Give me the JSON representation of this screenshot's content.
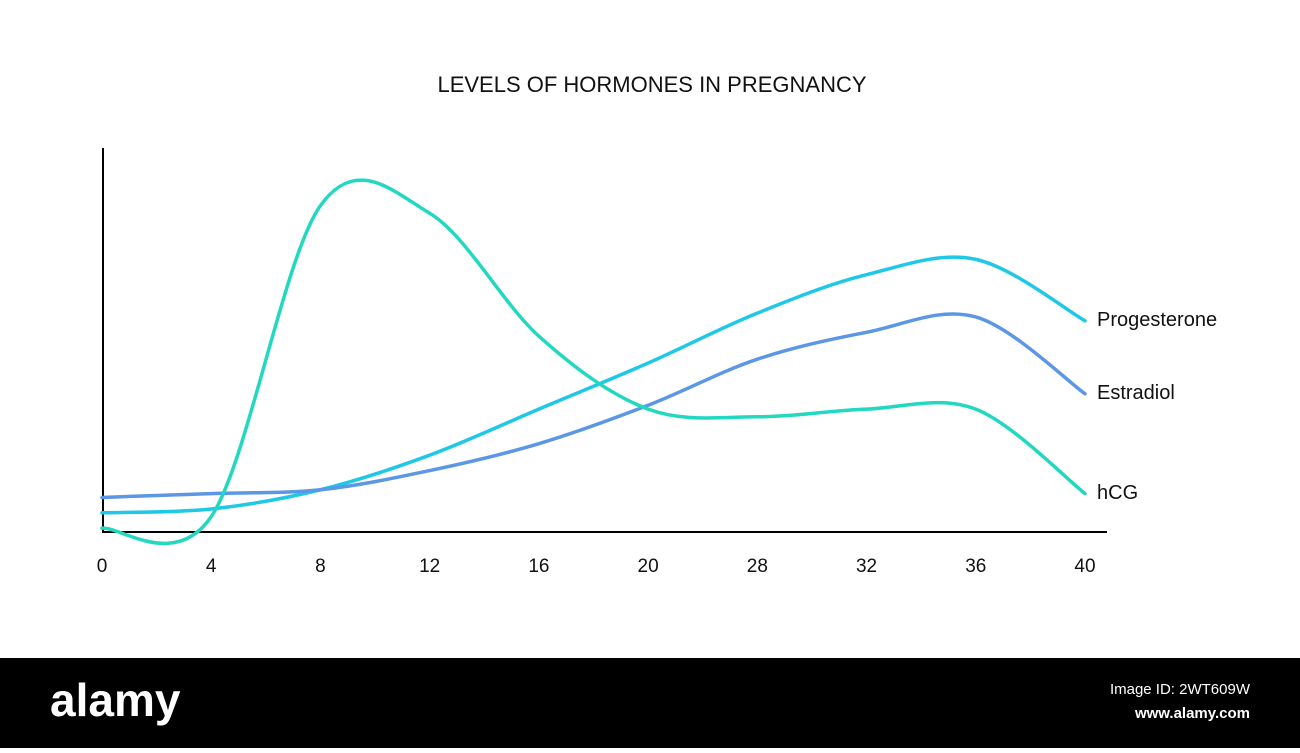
{
  "chart_data": {
    "type": "line",
    "title": "LEVELS OF HORMONES IN PREGNANCY",
    "categories": [
      "0",
      "4",
      "8",
      "12",
      "16",
      "20",
      "28",
      "32",
      "36",
      "40"
    ],
    "ylim": [
      0,
      100
    ],
    "series": [
      {
        "name": "Progesterone",
        "color": "#1ec8e6",
        "values": [
          5,
          6,
          11,
          20,
          32,
          44,
          57,
          67,
          71,
          55
        ]
      },
      {
        "name": "Estradiol",
        "color": "#5b97e4",
        "values": [
          9,
          10,
          11,
          16,
          23,
          33,
          45,
          52,
          56,
          36
        ]
      },
      {
        "name": "hCG",
        "color": "#22d8c0",
        "values": [
          1,
          4,
          85,
          83,
          51,
          32,
          30,
          32,
          32,
          10
        ]
      }
    ]
  },
  "watermark": {
    "brand": "alamy",
    "image_id": "Image ID: 2WT609W",
    "url": "www.alamy.com"
  }
}
